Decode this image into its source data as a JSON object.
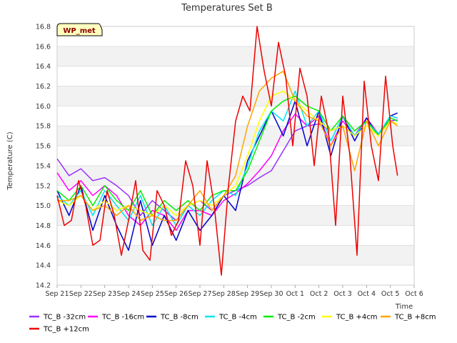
{
  "chart_data": {
    "type": "line",
    "title": "Temperatures Set B",
    "xlabel": "Time",
    "ylabel": "Temperature (C)",
    "badge": "WP_met",
    "ylim": [
      14.2,
      16.8
    ],
    "yticks": [
      14.2,
      14.4,
      14.6,
      14.8,
      15.0,
      15.2,
      15.4,
      15.6,
      15.8,
      16.0,
      16.2,
      16.4,
      16.6,
      16.8
    ],
    "xlim": [
      0,
      15
    ],
    "x_tick_labels": [
      "Sep 21",
      "Sep 22",
      "Sep 23",
      "Sep 24",
      "Sep 25",
      "Sep 26",
      "Sep 27",
      "Sep 28",
      "Sep 29",
      "Sep 30",
      "Oct 1",
      "Oct 2",
      "Oct 3",
      "Oct 4",
      "Oct 5",
      "Oct 6"
    ],
    "grid": true,
    "legend_position": "bottom",
    "series": [
      {
        "name": "TC_B -32cm",
        "color": "#9b30ff",
        "x": [
          0,
          0.5,
          1,
          1.5,
          2,
          2.5,
          3,
          3.5,
          4,
          4.5,
          5,
          5.5,
          6,
          6.5,
          7,
          7.5,
          8,
          8.5,
          9,
          9.5,
          10,
          10.5,
          11,
          11.5,
          12,
          12.5,
          13,
          13.5,
          14,
          14.3
        ],
        "y": [
          15.47,
          15.3,
          15.37,
          15.25,
          15.28,
          15.2,
          15.1,
          14.9,
          15.05,
          14.95,
          14.85,
          15.0,
          15.05,
          14.95,
          15.1,
          15.15,
          15.2,
          15.28,
          15.35,
          15.55,
          15.75,
          15.8,
          15.82,
          15.75,
          15.8,
          15.7,
          15.85,
          15.72,
          15.85,
          15.86
        ]
      },
      {
        "name": "TC_B -16cm",
        "color": "#ff00ff",
        "x": [
          0,
          0.5,
          1,
          1.5,
          2,
          2.5,
          3,
          3.5,
          4,
          4.5,
          5,
          5.5,
          6,
          6.5,
          7,
          7.5,
          8,
          8.5,
          9,
          9.5,
          10,
          10.5,
          11,
          11.5,
          12,
          12.5,
          13,
          13.5,
          14,
          14.3
        ],
        "y": [
          15.33,
          15.15,
          15.25,
          15.1,
          15.2,
          15.1,
          14.9,
          14.8,
          14.95,
          14.9,
          14.75,
          14.95,
          14.95,
          14.9,
          15.05,
          15.12,
          15.22,
          15.35,
          15.5,
          15.75,
          15.92,
          15.8,
          15.9,
          15.6,
          15.85,
          15.7,
          15.88,
          15.72,
          15.9,
          15.88
        ]
      },
      {
        "name": "TC_B -8cm",
        "color": "#0000cd",
        "x": [
          0,
          0.5,
          1,
          1.5,
          2,
          2.5,
          3,
          3.5,
          4,
          4.5,
          5,
          5.5,
          6,
          6.5,
          7,
          7.5,
          8,
          8.5,
          9,
          9.5,
          10,
          10.5,
          11,
          11.5,
          12,
          12.5,
          13,
          13.5,
          14,
          14.3
        ],
        "y": [
          15.15,
          14.9,
          15.2,
          14.75,
          15.1,
          14.8,
          14.55,
          15.05,
          14.6,
          14.9,
          14.65,
          14.95,
          14.75,
          14.9,
          15.1,
          14.95,
          15.45,
          15.7,
          15.95,
          15.7,
          16.05,
          15.6,
          15.95,
          15.5,
          15.9,
          15.65,
          15.88,
          15.7,
          15.9,
          15.93
        ]
      },
      {
        "name": "TC_B -4cm",
        "color": "#00e5ee",
        "x": [
          0,
          0.5,
          1,
          1.5,
          2,
          2.5,
          3,
          3.5,
          4,
          4.5,
          5,
          5.5,
          6,
          6.5,
          7,
          7.5,
          8,
          8.5,
          9,
          9.5,
          10,
          10.5,
          11,
          11.5,
          12,
          12.5,
          13,
          13.5,
          14,
          14.3
        ],
        "y": [
          15.1,
          15.0,
          15.15,
          14.9,
          15.15,
          15.0,
          14.85,
          15.1,
          14.8,
          15.0,
          14.8,
          15.0,
          14.9,
          15.05,
          15.15,
          15.1,
          15.4,
          15.75,
          15.95,
          15.85,
          16.15,
          15.8,
          15.95,
          15.65,
          15.9,
          15.7,
          15.85,
          15.72,
          15.9,
          15.88
        ]
      },
      {
        "name": "TC_B -2cm",
        "color": "#00ee00",
        "x": [
          0,
          0.5,
          1,
          1.5,
          2,
          2.5,
          3,
          3.5,
          4,
          4.5,
          5,
          5.5,
          6,
          6.5,
          7,
          7.5,
          8,
          8.5,
          9,
          9.5,
          10,
          10.5,
          11,
          11.5,
          12,
          12.5,
          13,
          13.5,
          14,
          14.3
        ],
        "y": [
          15.15,
          15.05,
          15.2,
          15.0,
          15.2,
          15.05,
          14.95,
          15.15,
          14.9,
          15.05,
          14.95,
          15.05,
          14.95,
          15.1,
          15.15,
          15.15,
          15.35,
          15.65,
          15.95,
          16.05,
          16.1,
          16.0,
          15.95,
          15.75,
          15.9,
          15.75,
          15.85,
          15.7,
          15.88,
          15.85
        ]
      },
      {
        "name": "TC_B +4cm",
        "color": "#ffff00",
        "x": [
          0,
          0.5,
          1,
          1.5,
          2,
          2.5,
          3,
          3.5,
          4,
          4.5,
          5,
          5.5,
          6,
          6.5,
          7,
          7.5,
          8,
          8.5,
          9,
          9.5,
          10,
          10.5,
          11,
          11.5,
          12,
          12.5,
          13,
          13.5,
          14,
          14.3
        ],
        "y": [
          15.05,
          15.0,
          15.1,
          14.95,
          15.05,
          14.95,
          15.0,
          14.95,
          14.9,
          15.0,
          14.9,
          15.0,
          15.05,
          15.0,
          15.1,
          15.2,
          15.5,
          15.85,
          16.1,
          16.15,
          16.05,
          15.95,
          15.85,
          15.75,
          15.8,
          15.7,
          15.8,
          15.7,
          15.85,
          15.82
        ]
      },
      {
        "name": "TC_B +8cm",
        "color": "#ffa500",
        "x": [
          0,
          0.5,
          1,
          1.5,
          2,
          2.5,
          3,
          3.5,
          4,
          4.5,
          5,
          5.5,
          6,
          6.5,
          7,
          7.5,
          8,
          8.5,
          9,
          9.5,
          10,
          10.5,
          11,
          11.5,
          12,
          12.5,
          13,
          13.5,
          14,
          14.3
        ],
        "y": [
          15.05,
          15.05,
          15.1,
          14.95,
          15.0,
          14.9,
          15.0,
          14.85,
          14.9,
          14.85,
          14.85,
          15.0,
          15.15,
          14.95,
          15.1,
          15.3,
          15.8,
          16.15,
          16.28,
          16.35,
          16.05,
          15.9,
          15.85,
          15.6,
          15.8,
          15.35,
          15.85,
          15.6,
          15.85,
          15.8
        ]
      },
      {
        "name": "TC_B +12cm",
        "color": "#ee0000",
        "x": [
          0,
          0.3,
          0.6,
          0.9,
          1.2,
          1.5,
          1.8,
          2.1,
          2.4,
          2.7,
          3.0,
          3.3,
          3.6,
          3.9,
          4.2,
          4.5,
          4.8,
          5.1,
          5.4,
          5.7,
          6.0,
          6.3,
          6.6,
          6.9,
          7.2,
          7.5,
          7.8,
          8.1,
          8.4,
          8.7,
          9.0,
          9.3,
          9.6,
          9.9,
          10.2,
          10.5,
          10.8,
          11.1,
          11.4,
          11.7,
          12.0,
          12.3,
          12.6,
          12.9,
          13.2,
          13.5,
          13.8,
          14.1,
          14.3
        ],
        "y": [
          15.1,
          14.8,
          14.85,
          15.25,
          15.0,
          14.6,
          14.65,
          15.15,
          14.9,
          14.5,
          14.85,
          15.25,
          14.55,
          14.45,
          15.15,
          15.0,
          14.7,
          14.85,
          15.45,
          15.2,
          14.6,
          15.45,
          15.0,
          14.3,
          15.2,
          15.85,
          16.1,
          15.95,
          16.8,
          16.35,
          16.0,
          16.64,
          16.3,
          15.6,
          16.38,
          16.1,
          15.4,
          16.1,
          15.75,
          14.8,
          16.1,
          15.5,
          14.5,
          16.25,
          15.6,
          15.25,
          16.3,
          15.6,
          15.3
        ]
      }
    ]
  }
}
